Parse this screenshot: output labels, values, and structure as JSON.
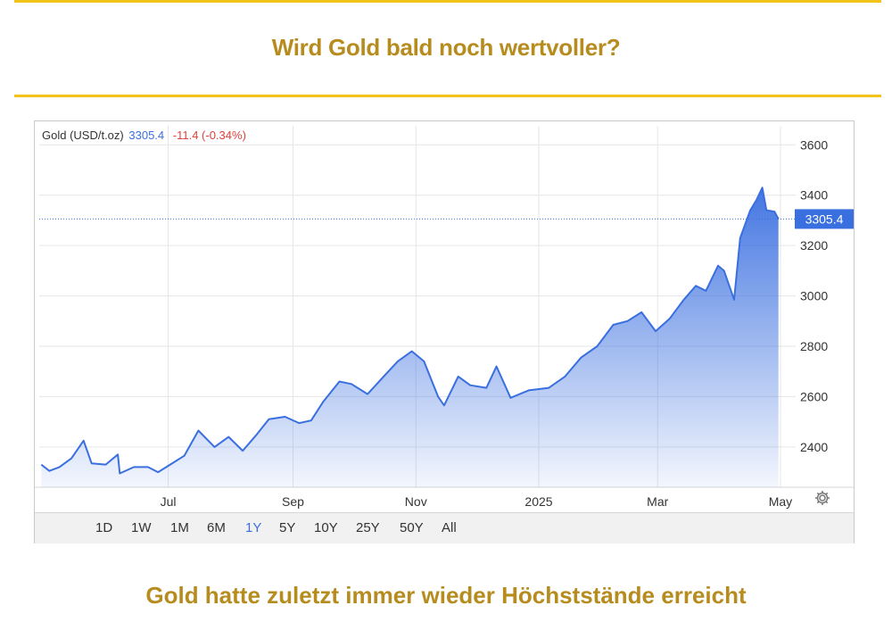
{
  "headline": "Wird Gold bald noch wertvoller?",
  "caption": "Gold hatte zuletzt immer wieder Höchststände erreicht",
  "legend": {
    "name": "Gold (USD/t.oz)",
    "price": "3305.4",
    "change": "-11.4 (-0.34%)"
  },
  "ranges": [
    "1D",
    "1W",
    "1M",
    "6M",
    "1Y",
    "5Y",
    "10Y",
    "25Y",
    "50Y",
    "All"
  ],
  "active_range": "1Y",
  "colors": {
    "accent": "#f2c318",
    "headline": "#b78c1f",
    "line": "#3a6fe0",
    "negative": "#e0413a"
  },
  "chart_data": {
    "type": "area",
    "title": "Gold (USD/t.oz)",
    "last_value": 3305.4,
    "ylim": [
      2240,
      3640
    ],
    "yticks": [
      2400,
      2600,
      2800,
      3000,
      3200,
      3400,
      3600
    ],
    "xlim": [
      "2024-04-28",
      "2025-05-05"
    ],
    "xticks": [
      {
        "date": "2024-07-01",
        "label": "Jul"
      },
      {
        "date": "2024-09-01",
        "label": "Sep"
      },
      {
        "date": "2024-11-01",
        "label": "Nov"
      },
      {
        "date": "2025-01-01",
        "label": "2025"
      },
      {
        "date": "2025-03-01",
        "label": "Mar"
      },
      {
        "date": "2025-05-01",
        "label": "May"
      }
    ],
    "grid": true,
    "series": [
      {
        "name": "Gold (USD/t.oz)",
        "points": [
          [
            "2024-04-29",
            2330
          ],
          [
            "2024-05-03",
            2305
          ],
          [
            "2024-05-08",
            2320
          ],
          [
            "2024-05-14",
            2355
          ],
          [
            "2024-05-20",
            2425
          ],
          [
            "2024-05-24",
            2335
          ],
          [
            "2024-05-31",
            2330
          ],
          [
            "2024-06-06",
            2370
          ],
          [
            "2024-06-07",
            2295
          ],
          [
            "2024-06-14",
            2320
          ],
          [
            "2024-06-21",
            2320
          ],
          [
            "2024-06-26",
            2300
          ],
          [
            "2024-07-02",
            2330
          ],
          [
            "2024-07-09",
            2365
          ],
          [
            "2024-07-16",
            2465
          ],
          [
            "2024-07-24",
            2400
          ],
          [
            "2024-07-31",
            2440
          ],
          [
            "2024-08-07",
            2385
          ],
          [
            "2024-08-14",
            2450
          ],
          [
            "2024-08-20",
            2510
          ],
          [
            "2024-08-28",
            2520
          ],
          [
            "2024-09-04",
            2495
          ],
          [
            "2024-09-10",
            2505
          ],
          [
            "2024-09-16",
            2580
          ],
          [
            "2024-09-24",
            2660
          ],
          [
            "2024-09-30",
            2650
          ],
          [
            "2024-10-08",
            2610
          ],
          [
            "2024-10-16",
            2680
          ],
          [
            "2024-10-23",
            2740
          ],
          [
            "2024-10-30",
            2780
          ],
          [
            "2024-11-05",
            2740
          ],
          [
            "2024-11-12",
            2600
          ],
          [
            "2024-11-15",
            2565
          ],
          [
            "2024-11-22",
            2680
          ],
          [
            "2024-11-28",
            2645
          ],
          [
            "2024-12-06",
            2635
          ],
          [
            "2024-12-11",
            2720
          ],
          [
            "2024-12-18",
            2595
          ],
          [
            "2024-12-27",
            2625
          ],
          [
            "2025-01-06",
            2635
          ],
          [
            "2025-01-14",
            2680
          ],
          [
            "2025-01-22",
            2755
          ],
          [
            "2025-01-30",
            2800
          ],
          [
            "2025-02-07",
            2885
          ],
          [
            "2025-02-14",
            2900
          ],
          [
            "2025-02-21",
            2935
          ],
          [
            "2025-02-28",
            2860
          ],
          [
            "2025-03-07",
            2910
          ],
          [
            "2025-03-14",
            2985
          ],
          [
            "2025-03-20",
            3040
          ],
          [
            "2025-03-25",
            3020
          ],
          [
            "2025-03-31",
            3120
          ],
          [
            "2025-04-03",
            3100
          ],
          [
            "2025-04-08",
            2985
          ],
          [
            "2025-04-11",
            3230
          ],
          [
            "2025-04-16",
            3340
          ],
          [
            "2025-04-19",
            3380
          ],
          [
            "2025-04-22",
            3430
          ],
          [
            "2025-04-24",
            3340
          ],
          [
            "2025-04-28",
            3335
          ],
          [
            "2025-04-30",
            3305.4
          ]
        ]
      }
    ]
  }
}
